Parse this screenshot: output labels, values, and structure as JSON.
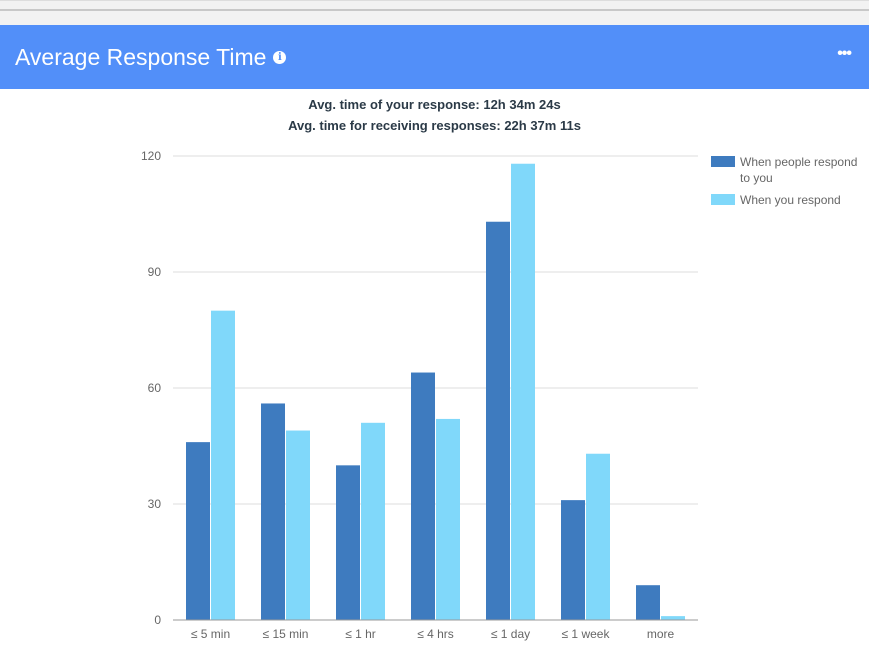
{
  "header": {
    "title": "Average Response Time",
    "info_icon": "info-icon",
    "menu_icon": "more-horizontal-icon"
  },
  "summary": {
    "line1": "Avg. time of your response: 12h 34m 24s",
    "line2": "Avg. time for receiving responses: 22h 37m 11s"
  },
  "chart_data": {
    "type": "bar",
    "categories": [
      "≤ 5 min",
      "≤ 15 min",
      "≤ 1 hr",
      "≤ 4 hrs",
      "≤ 1 day",
      "≤ 1 week",
      "more"
    ],
    "series": [
      {
        "name": "When people respond to you",
        "color": "#3e7bbf",
        "values": [
          46,
          56,
          40,
          64,
          103,
          31,
          9
        ]
      },
      {
        "name": "When you respond",
        "color": "#80d8fa",
        "values": [
          80,
          49,
          51,
          52,
          118,
          43,
          1
        ]
      }
    ],
    "ylim": [
      0,
      120
    ],
    "yticks": [
      0,
      30,
      60,
      90,
      120
    ],
    "grid": true,
    "legend": "right"
  }
}
